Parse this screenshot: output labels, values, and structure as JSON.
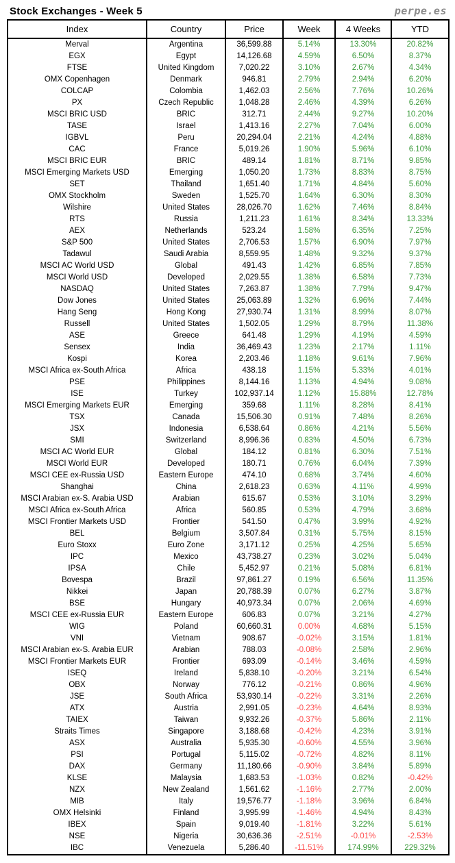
{
  "header": {
    "title": "Stock Exchanges - Week 5",
    "logo": "perpe.es"
  },
  "colors": {
    "positive": "#3C9B3C",
    "negative": "#FF4A4A",
    "text": "#000000",
    "logo_gray": "#8A8A8A"
  },
  "table": {
    "columns": [
      "Index",
      "Country",
      "Price",
      "Week",
      "4 Weeks",
      "YTD"
    ],
    "rows": [
      [
        "Merval",
        "Argentina",
        "36,599.88",
        "5.14%",
        "13.30%",
        "20.82%"
      ],
      [
        "EGX",
        "Egypt",
        "14,126.68",
        "4.59%",
        "6.50%",
        "8.37%"
      ],
      [
        "FTSE",
        "United Kingdom",
        "7,020.22",
        "3.10%",
        "2.67%",
        "4.34%"
      ],
      [
        "OMX Copenhagen",
        "Denmark",
        "946.81",
        "2.79%",
        "2.94%",
        "6.20%"
      ],
      [
        "COLCAP",
        "Colombia",
        "1,462.03",
        "2.56%",
        "7.76%",
        "10.26%"
      ],
      [
        "PX",
        "Czech Republic",
        "1,048.28",
        "2.46%",
        "4.39%",
        "6.26%"
      ],
      [
        "MSCI BRIC USD",
        "BRIC",
        "312.71",
        "2.44%",
        "9.27%",
        "10.20%"
      ],
      [
        "TASE",
        "Israel",
        "1,413.16",
        "2.27%",
        "7.04%",
        "6.00%"
      ],
      [
        "IGBVL",
        "Peru",
        "20,294.04",
        "2.21%",
        "4.24%",
        "4.88%"
      ],
      [
        "CAC",
        "France",
        "5,019.26",
        "1.90%",
        "5.96%",
        "6.10%"
      ],
      [
        "MSCI BRIC EUR",
        "BRIC",
        "489.14",
        "1.81%",
        "8.71%",
        "9.85%"
      ],
      [
        "MSCI Emerging Markets USD",
        "Emerging",
        "1,050.20",
        "1.73%",
        "8.83%",
        "8.75%"
      ],
      [
        "SET",
        "Thailand",
        "1,651.40",
        "1.71%",
        "4.84%",
        "5.60%"
      ],
      [
        "OMX Stockholm",
        "Sweden",
        "1,525.70",
        "1.64%",
        "6.30%",
        "8.30%"
      ],
      [
        "Wilshire",
        "United States",
        "28,026.70",
        "1.62%",
        "7.46%",
        "8.84%"
      ],
      [
        "RTS",
        "Russia",
        "1,211.23",
        "1.61%",
        "8.34%",
        "13.33%"
      ],
      [
        "AEX",
        "Netherlands",
        "523.24",
        "1.58%",
        "6.35%",
        "7.25%"
      ],
      [
        "S&P 500",
        "United States",
        "2,706.53",
        "1.57%",
        "6.90%",
        "7.97%"
      ],
      [
        "Tadawul",
        "Saudi Arabia",
        "8,559.95",
        "1.48%",
        "9.32%",
        "9.37%"
      ],
      [
        "MSCI AC World USD",
        "Global",
        "491.43",
        "1.42%",
        "6.85%",
        "7.85%"
      ],
      [
        "MSCI World USD",
        "Developed",
        "2,029.55",
        "1.38%",
        "6.58%",
        "7.73%"
      ],
      [
        "NASDAQ",
        "United States",
        "7,263.87",
        "1.38%",
        "7.79%",
        "9.47%"
      ],
      [
        "Dow Jones",
        "United States",
        "25,063.89",
        "1.32%",
        "6.96%",
        "7.44%"
      ],
      [
        "Hang Seng",
        "Hong Kong",
        "27,930.74",
        "1.31%",
        "8.99%",
        "8.07%"
      ],
      [
        "Russell",
        "United States",
        "1,502.05",
        "1.29%",
        "8.79%",
        "11.38%"
      ],
      [
        "ASE",
        "Greece",
        "641.48",
        "1.29%",
        "4.19%",
        "4.59%"
      ],
      [
        "Sensex",
        "India",
        "36,469.43",
        "1.23%",
        "2.17%",
        "1.11%"
      ],
      [
        "Kospi",
        "Korea",
        "2,203.46",
        "1.18%",
        "9.61%",
        "7.96%"
      ],
      [
        "MSCI Africa ex-South Africa",
        "Africa",
        "438.18",
        "1.15%",
        "5.33%",
        "4.01%"
      ],
      [
        "PSE",
        "Philippines",
        "8,144.16",
        "1.13%",
        "4.94%",
        "9.08%"
      ],
      [
        "ISE",
        "Turkey",
        "102,937.14",
        "1.12%",
        "15.88%",
        "12.78%"
      ],
      [
        "MSCI Emerging Markets EUR",
        "Emerging",
        "359.68",
        "1.11%",
        "8.28%",
        "8.41%"
      ],
      [
        "TSX",
        "Canada",
        "15,506.30",
        "0.91%",
        "7.48%",
        "8.26%"
      ],
      [
        "JSX",
        "Indonesia",
        "6,538.64",
        "0.86%",
        "4.21%",
        "5.56%"
      ],
      [
        "SMI",
        "Switzerland",
        "8,996.36",
        "0.83%",
        "4.50%",
        "6.73%"
      ],
      [
        "MSCI AC World EUR",
        "Global",
        "184.12",
        "0.81%",
        "6.30%",
        "7.51%"
      ],
      [
        "MSCI World EUR",
        "Developed",
        "180.71",
        "0.76%",
        "6.04%",
        "7.39%"
      ],
      [
        "MSCI CEE ex-Russia USD",
        "Eastern Europe",
        "474.10",
        "0.68%",
        "3.74%",
        "4.60%"
      ],
      [
        "Shanghai",
        "China",
        "2,618.23",
        "0.63%",
        "4.11%",
        "4.99%"
      ],
      [
        "MSCI Arabian ex-S. Arabia USD",
        "Arabian",
        "615.67",
        "0.53%",
        "3.10%",
        "3.29%"
      ],
      [
        "MSCI Africa ex-South Africa",
        "Africa",
        "560.85",
        "0.53%",
        "4.79%",
        "3.68%"
      ],
      [
        "MSCI Frontier Markets USD",
        "Frontier",
        "541.50",
        "0.47%",
        "3.99%",
        "4.92%"
      ],
      [
        "BEL",
        "Belgium",
        "3,507.84",
        "0.31%",
        "5.75%",
        "8.15%"
      ],
      [
        "Euro Stoxx",
        "Euro Zone",
        "3,171.12",
        "0.25%",
        "4.25%",
        "5.65%"
      ],
      [
        "IPC",
        "Mexico",
        "43,738.27",
        "0.23%",
        "3.02%",
        "5.04%"
      ],
      [
        "IPSA",
        "Chile",
        "5,452.97",
        "0.21%",
        "5.08%",
        "6.81%"
      ],
      [
        "Bovespa",
        "Brazil",
        "97,861.27",
        "0.19%",
        "6.56%",
        "11.35%"
      ],
      [
        "Nikkei",
        "Japan",
        "20,788.39",
        "0.07%",
        "6.27%",
        "3.87%"
      ],
      [
        "BSE",
        "Hungary",
        "40,973.34",
        "0.07%",
        "2.06%",
        "4.69%"
      ],
      [
        "MSCI CEE ex-Russia EUR",
        "Eastern Europe",
        "606.83",
        "0.07%",
        "3.21%",
        "4.27%"
      ],
      [
        "WIG",
        "Poland",
        "60,660.31",
        "0.00%",
        "4.68%",
        "5.15%"
      ],
      [
        "VNI",
        "Vietnam",
        "908.67",
        "-0.02%",
        "3.15%",
        "1.81%"
      ],
      [
        "MSCI Arabian ex-S. Arabia EUR",
        "Arabian",
        "788.03",
        "-0.08%",
        "2.58%",
        "2.96%"
      ],
      [
        "MSCI Frontier Markets EUR",
        "Frontier",
        "693.09",
        "-0.14%",
        "3.46%",
        "4.59%"
      ],
      [
        "ISEQ",
        "Ireland",
        "5,838.10",
        "-0.20%",
        "3.21%",
        "6.54%"
      ],
      [
        "OBX",
        "Norway",
        "776.12",
        "-0.21%",
        "0.86%",
        "4.96%"
      ],
      [
        "JSE",
        "South Africa",
        "53,930.14",
        "-0.22%",
        "3.31%",
        "2.26%"
      ],
      [
        "ATX",
        "Austria",
        "2,991.05",
        "-0.23%",
        "4.64%",
        "8.93%"
      ],
      [
        "TAIEX",
        "Taiwan",
        "9,932.26",
        "-0.37%",
        "5.86%",
        "2.11%"
      ],
      [
        "Straits Times",
        "Singapore",
        "3,188.68",
        "-0.42%",
        "4.23%",
        "3.91%"
      ],
      [
        "ASX",
        "Australia",
        "5,935.30",
        "-0.60%",
        "4.55%",
        "3.96%"
      ],
      [
        "PSI",
        "Portugal",
        "5,115.02",
        "-0.72%",
        "4.82%",
        "8.11%"
      ],
      [
        "DAX",
        "Germany",
        "11,180.66",
        "-0.90%",
        "3.84%",
        "5.89%"
      ],
      [
        "KLSE",
        "Malaysia",
        "1,683.53",
        "-1.03%",
        "0.82%",
        "-0.42%"
      ],
      [
        "NZX",
        "New Zealand",
        "1,561.62",
        "-1.16%",
        "2.77%",
        "2.00%"
      ],
      [
        "MIB",
        "Italy",
        "19,576.77",
        "-1.18%",
        "3.96%",
        "6.84%"
      ],
      [
        "OMX Helsinki",
        "Finland",
        "3,995.99",
        "-1.46%",
        "4.94%",
        "8.43%"
      ],
      [
        "IBEX",
        "Spain",
        "9,019.40",
        "-1.81%",
        "3.22%",
        "5.61%"
      ],
      [
        "NSE",
        "Nigeria",
        "30,636.36",
        "-2.51%",
        "-0.01%",
        "-2.53%"
      ],
      [
        "IBC",
        "Venezuela",
        "5,286.40",
        "-11.51%",
        "174.99%",
        "229.32%"
      ]
    ]
  }
}
